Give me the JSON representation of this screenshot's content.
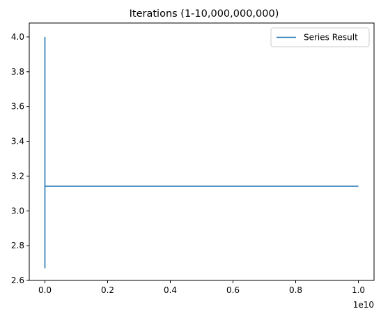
{
  "chart_data": {
    "type": "line",
    "title": "Iterations (1-10,000,000,000)",
    "xlabel": "",
    "ylabel": "",
    "x_offset_label": "1e10",
    "xlim": [
      -0.05,
      1.05
    ],
    "ylim": [
      2.6,
      4.08
    ],
    "x_ticks": [
      {
        "value": 0.0,
        "label": "0.0"
      },
      {
        "value": 0.2,
        "label": "0.2"
      },
      {
        "value": 0.4,
        "label": "0.4"
      },
      {
        "value": 0.6,
        "label": "0.6"
      },
      {
        "value": 0.8,
        "label": "0.8"
      },
      {
        "value": 1.0,
        "label": "1.0"
      }
    ],
    "y_ticks": [
      {
        "value": 2.6,
        "label": "2.6"
      },
      {
        "value": 2.8,
        "label": "2.8"
      },
      {
        "value": 3.0,
        "label": "3.0"
      },
      {
        "value": 3.2,
        "label": "3.2"
      },
      {
        "value": 3.4,
        "label": "3.4"
      },
      {
        "value": 3.6,
        "label": "3.6"
      },
      {
        "value": 3.8,
        "label": "3.8"
      },
      {
        "value": 4.0,
        "label": "4.0"
      }
    ],
    "grid": false,
    "legend_position": "top-right",
    "series": [
      {
        "name": "Series Result",
        "color": "#1f77b4",
        "x": [
          0.0,
          0.0,
          0.0,
          0.0,
          0.0,
          1.0
        ],
        "y": [
          4.0,
          2.67,
          3.47,
          2.9,
          3.1416,
          3.1416
        ]
      }
    ]
  }
}
